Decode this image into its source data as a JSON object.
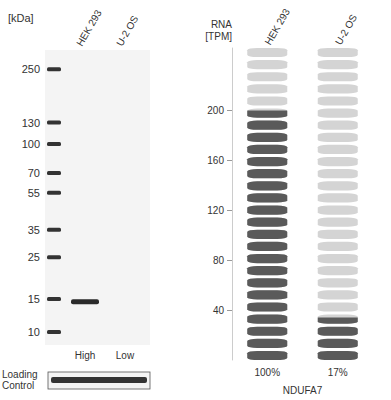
{
  "chart_data": {
    "type": "pictorial_bar",
    "y_label": "RNA [TPM]",
    "categories": [
      "HEK 293",
      "U-2 OS"
    ],
    "values": [
      200,
      34
    ],
    "percent_labels": [
      "100%",
      "17%"
    ],
    "gene": "NDUFA7",
    "colors": [
      "#5a5a5a",
      "#5a5a5a"
    ],
    "ylim": [
      0,
      250
    ],
    "yticks": [
      40,
      80,
      120,
      160,
      200
    ],
    "grid": false
  },
  "western_blot": {
    "axis_label": "[kDa]",
    "marker_kda": [
      250,
      130,
      100,
      70,
      55,
      35,
      25,
      15,
      10
    ],
    "lanes": [
      "HEK 293",
      "U-2 OS"
    ],
    "lane_amounts": [
      "High",
      "Low"
    ],
    "band_kda": 14.5,
    "band_lane": "HEK 293",
    "loading_control": "Loading Control"
  }
}
